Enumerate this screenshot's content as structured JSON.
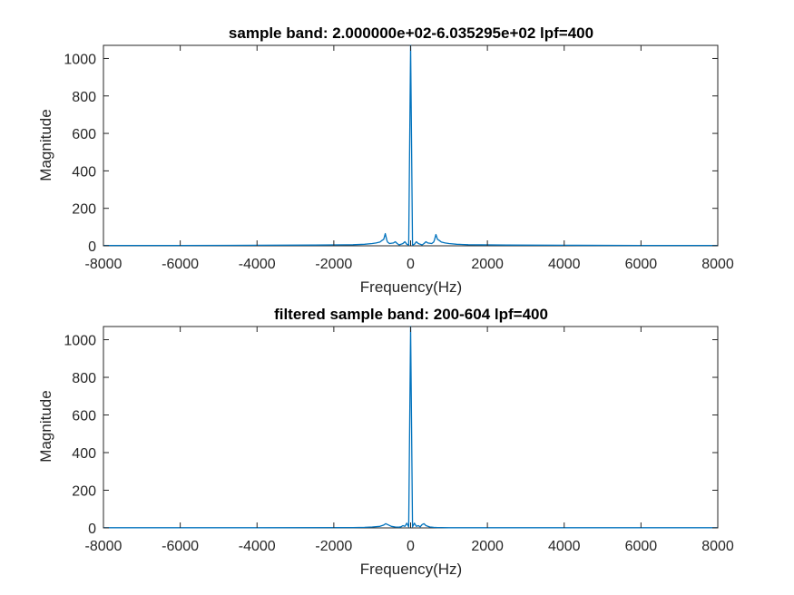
{
  "chart_data": [
    {
      "type": "line",
      "title": "sample band: 2.000000e+02-6.035295e+02 lpf=400",
      "xlabel": "Frequency(Hz)",
      "ylabel": "Magnitude",
      "xlim": [
        -8000,
        8000
      ],
      "ylim": [
        0,
        1070
      ],
      "xticks": [
        "-8000",
        "-6000",
        "-4000",
        "-2000",
        "0",
        "2000",
        "4000",
        "6000",
        "8000"
      ],
      "yticks": [
        "0",
        "200",
        "400",
        "600",
        "800",
        "1000"
      ],
      "grid": false,
      "color": "#0072BD",
      "series": [
        {
          "x": [
            -8000,
            -6000,
            -4000,
            -2500,
            -1500,
            -1200,
            -1000,
            -900,
            -800,
            -750,
            -700,
            -660,
            -620,
            -600,
            -550,
            -450,
            -400,
            -350,
            -300,
            -250,
            -200,
            -150,
            -100,
            -50,
            0,
            50,
            100,
            150,
            200,
            250,
            300,
            350,
            400,
            450,
            550,
            600,
            620,
            660,
            700,
            750,
            800,
            900,
            1000,
            1200,
            1500,
            2500,
            4000,
            6000,
            8000
          ],
          "y": [
            2,
            2,
            3,
            4,
            6,
            8,
            12,
            15,
            20,
            28,
            35,
            65,
            30,
            20,
            12,
            15,
            22,
            12,
            5,
            8,
            12,
            22,
            8,
            4,
            1070,
            4,
            8,
            22,
            12,
            8,
            5,
            12,
            22,
            15,
            12,
            20,
            30,
            60,
            35,
            28,
            20,
            15,
            12,
            8,
            6,
            4,
            3,
            2,
            2
          ]
        }
      ]
    },
    {
      "type": "line",
      "title": "filtered sample band: 200-604 lpf=400",
      "xlabel": "Frequency(Hz)",
      "ylabel": "Magnitude",
      "xlim": [
        -8000,
        8000
      ],
      "ylim": [
        0,
        1070
      ],
      "xticks": [
        "-8000",
        "-6000",
        "-4000",
        "-2000",
        "0",
        "2000",
        "4000",
        "6000",
        "8000"
      ],
      "yticks": [
        "0",
        "200",
        "400",
        "600",
        "800",
        "1000"
      ],
      "grid": false,
      "color": "#0072BD",
      "series": [
        {
          "x": [
            -8000,
            -4000,
            -1500,
            -1200,
            -1000,
            -800,
            -700,
            -650,
            -600,
            -500,
            -400,
            -300,
            -250,
            -200,
            -150,
            -100,
            -50,
            0,
            50,
            100,
            150,
            200,
            250,
            300,
            350,
            400,
            500,
            600,
            700,
            800,
            1000,
            1200,
            1500,
            4000,
            8000
          ],
          "y": [
            1,
            1,
            2,
            3,
            5,
            8,
            15,
            22,
            18,
            8,
            5,
            4,
            6,
            12,
            8,
            25,
            6,
            1070,
            6,
            25,
            8,
            12,
            6,
            18,
            22,
            12,
            5,
            3,
            2,
            2,
            1,
            1,
            1,
            1,
            1
          ]
        }
      ]
    }
  ]
}
